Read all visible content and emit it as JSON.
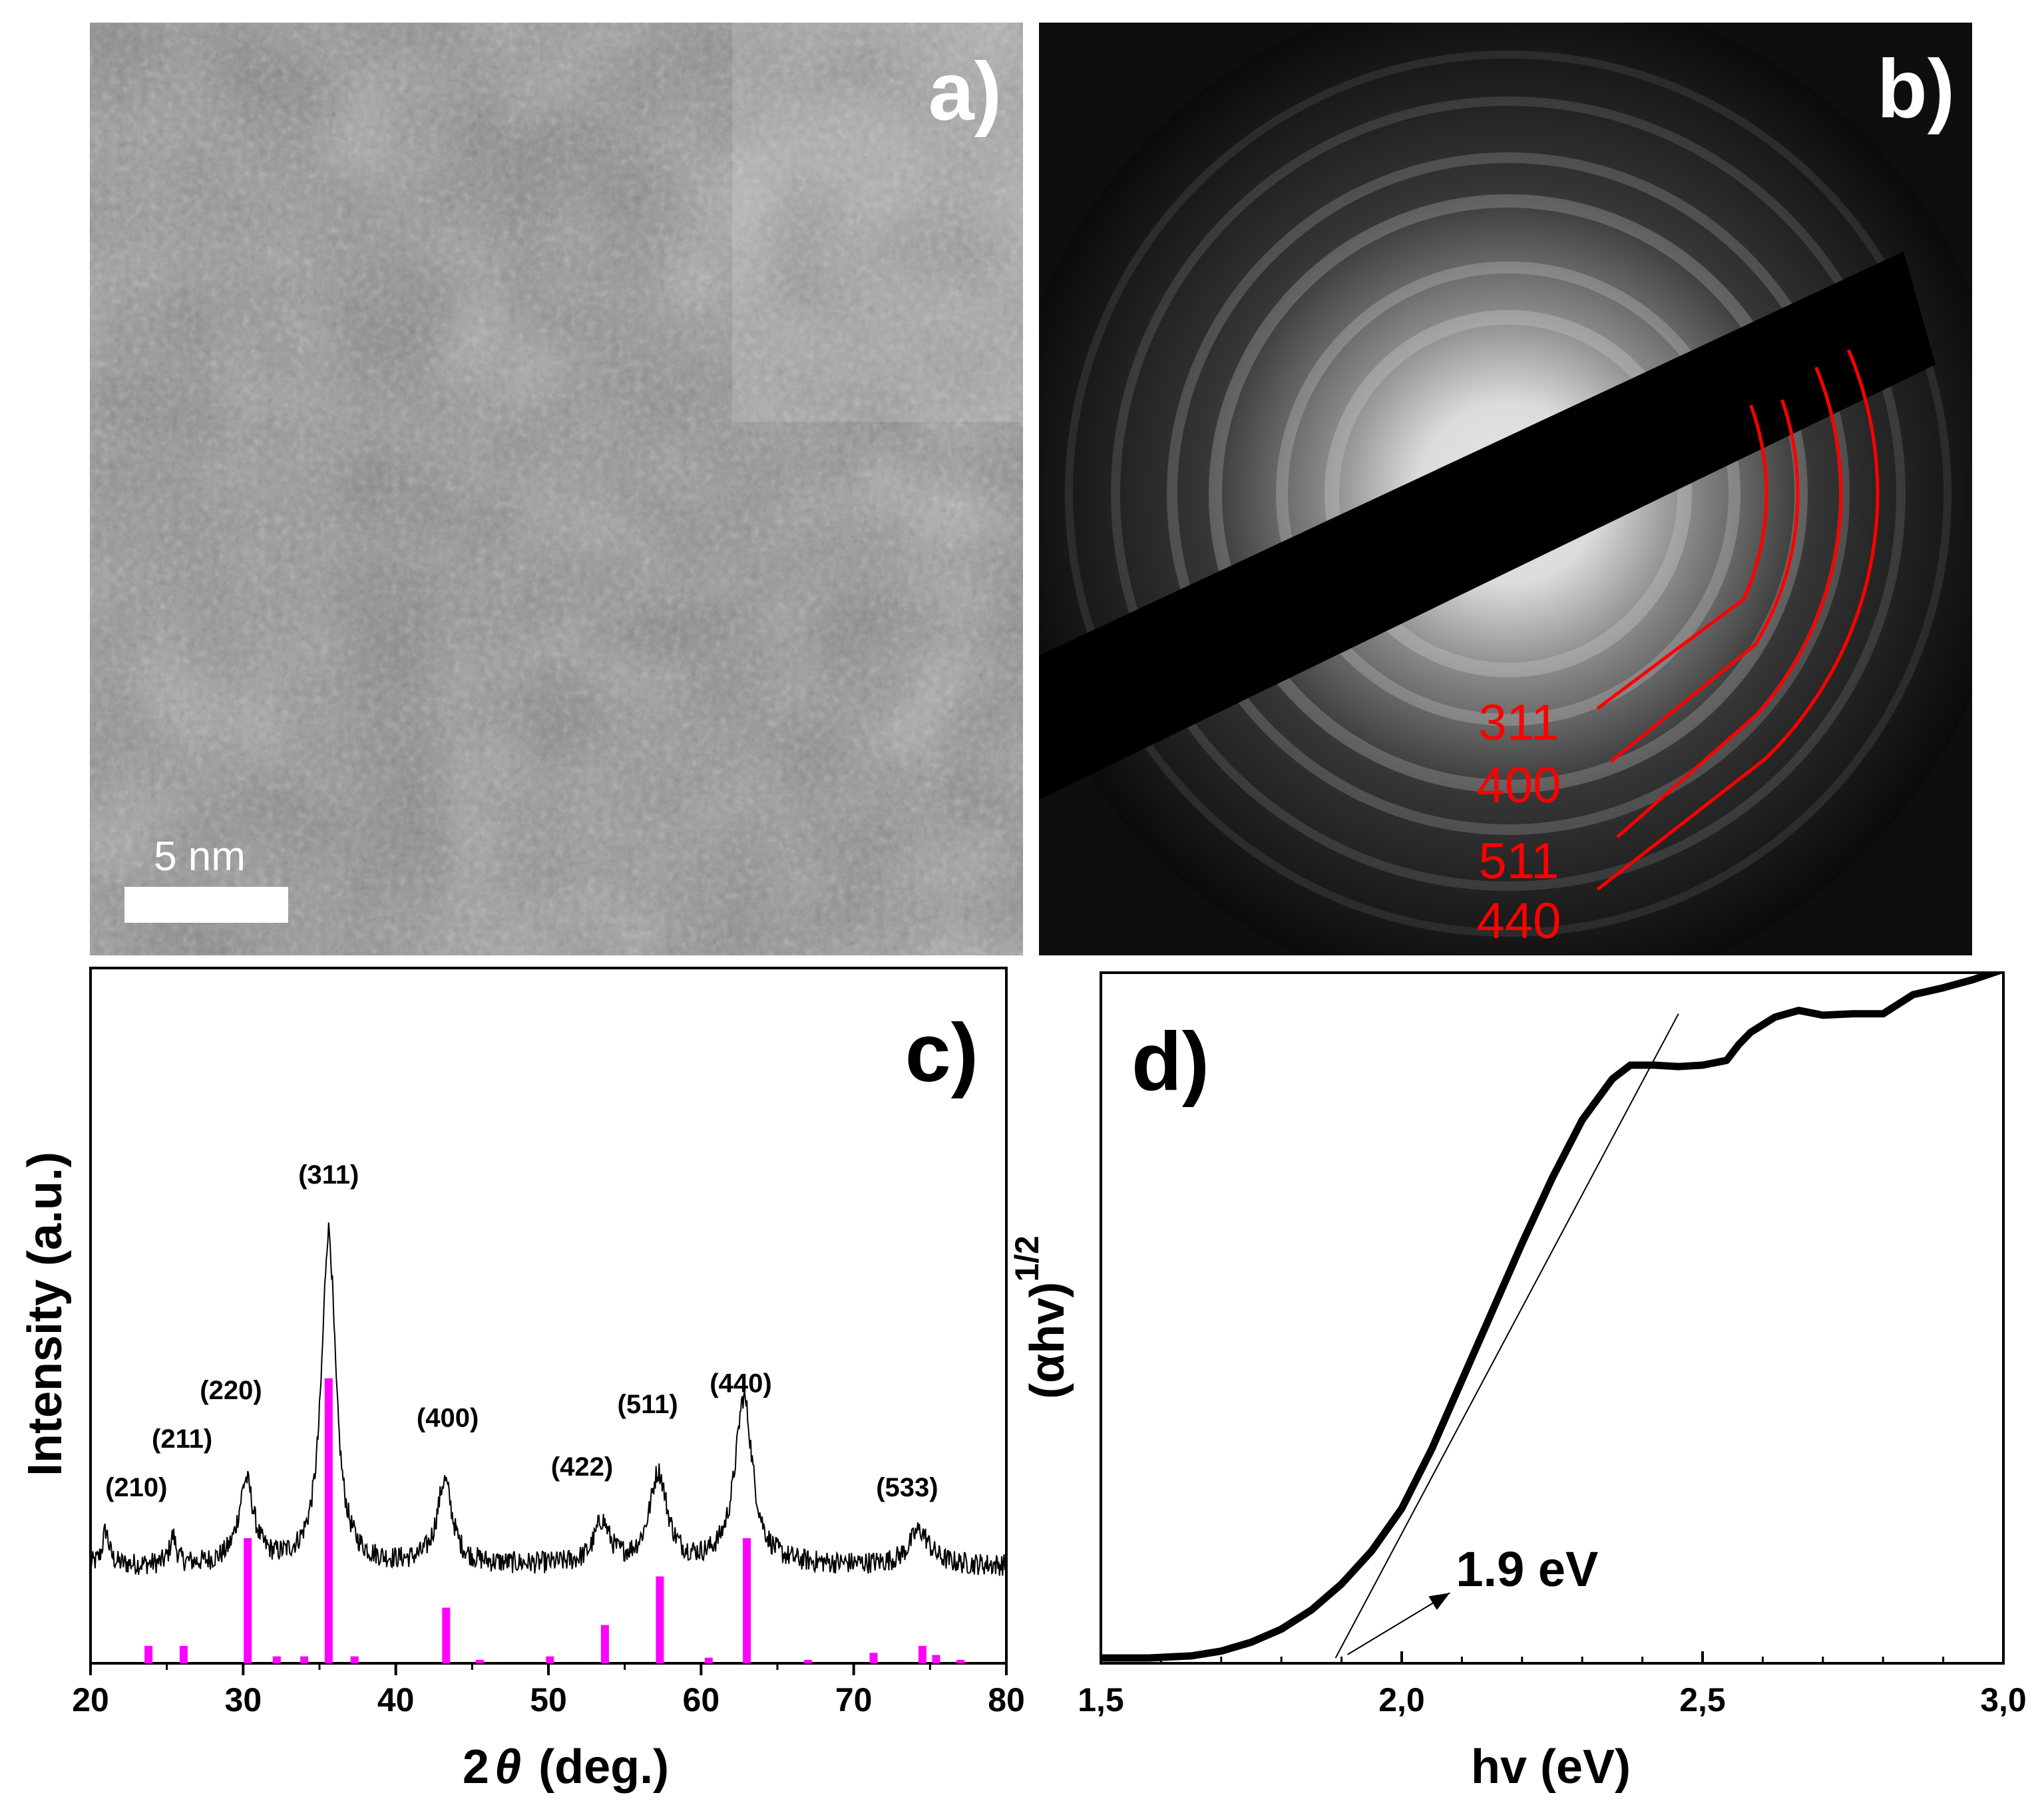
{
  "panels": {
    "a": {
      "label": "a)",
      "scale_bar_text": "5 nm"
    },
    "b": {
      "label": "b)",
      "ring_labels": [
        "311",
        "400",
        "511",
        "440"
      ],
      "ring_color": "#ff0000"
    },
    "c": {
      "label": "c)"
    },
    "d": {
      "label": "d)",
      "annotation": "1.9 eV"
    }
  },
  "chart_data": [
    {
      "panel": "c",
      "type": "line",
      "title": "",
      "xlabel_prefix": "2",
      "xlabel_symbol": "θ",
      "xlabel_suffix": "(deg.)",
      "ylabel": "Intensity (a.u.)",
      "xlim": [
        20,
        80
      ],
      "ylim": [
        0,
        100
      ],
      "xticks": [
        20,
        30,
        40,
        50,
        60,
        70,
        80
      ],
      "x_tick_labels": [
        "20",
        "30",
        "40",
        "50",
        "60",
        "70",
        "80"
      ],
      "baseline": 14,
      "noise_amplitude": 1.6,
      "peaks": [
        {
          "center": 21.0,
          "height": 5,
          "width": 0.25
        },
        {
          "center": 25.4,
          "height": 4,
          "width": 0.25
        },
        {
          "center": 30.2,
          "height": 12,
          "width": 0.6
        },
        {
          "center": 35.6,
          "height": 48,
          "width": 0.55
        },
        {
          "center": 43.2,
          "height": 12,
          "width": 0.6
        },
        {
          "center": 53.5,
          "height": 6,
          "width": 0.6
        },
        {
          "center": 57.2,
          "height": 13,
          "width": 0.7
        },
        {
          "center": 62.8,
          "height": 24,
          "width": 0.7
        },
        {
          "center": 74.3,
          "height": 5,
          "width": 0.8
        }
      ],
      "peak_labels": [
        {
          "text": "(210)",
          "x": 23.0,
          "y": 24
        },
        {
          "text": "(211)",
          "x": 26.0,
          "y": 31
        },
        {
          "text": "(220)",
          "x": 29.2,
          "y": 38
        },
        {
          "text": "(311)",
          "x": 35.6,
          "y": 69
        },
        {
          "text": "(400)",
          "x": 43.4,
          "y": 34
        },
        {
          "text": "(422)",
          "x": 52.2,
          "y": 27
        },
        {
          "text": "(511)",
          "x": 56.5,
          "y": 36
        },
        {
          "text": "(440)",
          "x": 62.6,
          "y": 39
        },
        {
          "text": "(533)",
          "x": 73.5,
          "y": 24
        }
      ],
      "reference_series": {
        "name": "reference",
        "color": "#ff00ff",
        "x": [
          23.8,
          26.1,
          30.3,
          32.2,
          34.0,
          35.6,
          37.3,
          43.3,
          45.5,
          50.1,
          53.7,
          57.3,
          60.5,
          63.0,
          67.0,
          71.3,
          74.5,
          75.4,
          77.0
        ],
        "y": [
          2.5,
          2.5,
          18,
          1,
          1,
          41,
          1,
          8,
          0.5,
          1,
          5.5,
          12.5,
          0.8,
          18,
          0.5,
          1.5,
          2.5,
          1.2,
          0.5
        ]
      }
    },
    {
      "panel": "d",
      "type": "line",
      "title": "",
      "xlabel": "hv (eV)",
      "ylabel_main": "(αhv)",
      "ylabel_sup": "1/2",
      "xlim": [
        1.5,
        3.0
      ],
      "ylim": [
        0,
        100
      ],
      "xticks": [
        1.5,
        2.0,
        2.5,
        3.0
      ],
      "x_tick_labels": [
        "1,5",
        "2,0",
        "2,5",
        "3,0"
      ],
      "series": [
        {
          "name": "absorption",
          "x": [
            1.5,
            1.58,
            1.65,
            1.7,
            1.75,
            1.8,
            1.85,
            1.9,
            1.95,
            2.0,
            2.05,
            2.1,
            2.15,
            2.2,
            2.25,
            2.3,
            2.35,
            2.38,
            2.42,
            2.46,
            2.5,
            2.54,
            2.56,
            2.58,
            2.62,
            2.66,
            2.7,
            2.75,
            2.8,
            2.85,
            2.9,
            2.95,
            3.0
          ],
          "y": [
            0,
            0,
            0.3,
            1.0,
            2.3,
            4.2,
            7.0,
            10.8,
            15.6,
            21.8,
            30.5,
            40.5,
            50.5,
            60.5,
            70.0,
            78.5,
            84.5,
            86.5,
            86.5,
            86.3,
            86.5,
            87.2,
            89.5,
            91.3,
            93.5,
            94.5,
            93.8,
            94.0,
            94.0,
            96.8,
            97.8,
            99.0,
            100.5
          ]
        }
      ],
      "tangent_line": {
        "x": [
          1.89,
          2.46
        ],
        "y": [
          0,
          94
        ]
      },
      "annotation_arrow": {
        "from": [
          1.91,
          0.5
        ],
        "to": [
          2.08,
          9.5
        ]
      },
      "annotation_text_pos": {
        "x": 2.09,
        "y": 10.5
      }
    }
  ]
}
